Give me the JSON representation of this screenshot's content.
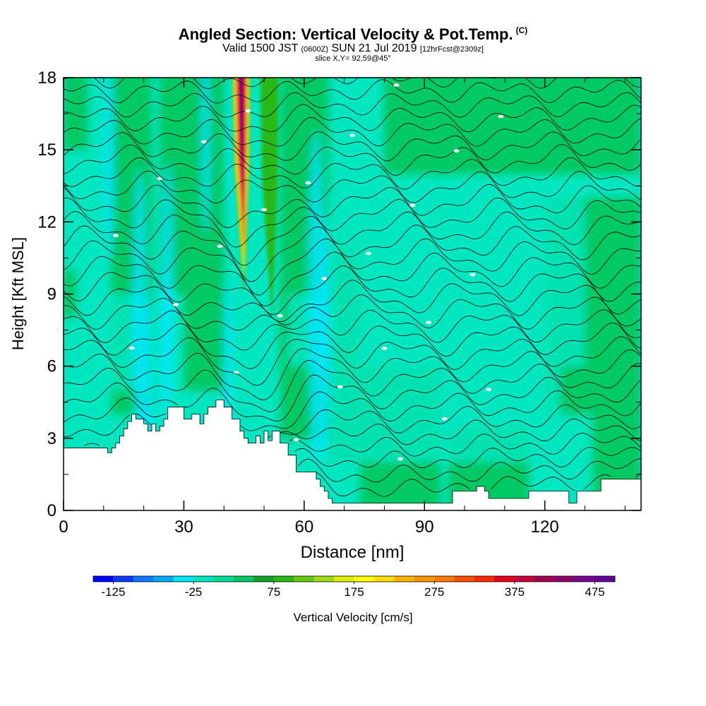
{
  "header": {
    "title": "Angled Section: Vertical Velocity & Pot.Temp.",
    "title_unit": "(C)",
    "valid_prefix": "Valid 1500 JST",
    "utc": "(0600Z)",
    "date": "SUN 21 Jul 2019",
    "forecast": "[12hrFcst@2309z]",
    "slice": "slice X,Y= 92,59@45°"
  },
  "chart_data": {
    "type": "heatmap",
    "title": "Angled Section: Vertical Velocity & Pot.Temp. (C)",
    "xlabel": "Distance [nm]",
    "ylabel": "Height [Kft MSL]",
    "xlim": [
      0,
      144
    ],
    "ylim": [
      0,
      18
    ],
    "x_ticks": [
      0,
      30,
      60,
      90,
      120
    ],
    "y_ticks": [
      0,
      3,
      6,
      9,
      12,
      15,
      18
    ],
    "colorbar": {
      "label": "Vertical Velocity [cm/s]",
      "min": -150,
      "max": 500,
      "step": 25,
      "tick_labels": [
        "-125",
        "-25",
        "75",
        "175",
        "275",
        "375",
        "475"
      ],
      "tick_values": [
        -125,
        -25,
        75,
        175,
        275,
        375,
        475
      ],
      "colors": [
        "#0000ff",
        "#0a3cff",
        "#0f78ff",
        "#00a8ff",
        "#00e6ff",
        "#00e6c0",
        "#00dc96",
        "#00c864",
        "#14a028",
        "#2ab814",
        "#64c814",
        "#a0dc14",
        "#dcf000",
        "#ffff00",
        "#ffdc00",
        "#ffb400",
        "#ff9600",
        "#ff7800",
        "#ff5000",
        "#ff2800",
        "#e6001e",
        "#c8003c",
        "#a00050",
        "#8c006e",
        "#78008c",
        "#640096"
      ]
    },
    "background_field": {
      "dominant_range_cm_s": [
        -25,
        25
      ],
      "secondary_range_cm_s": [
        25,
        75
      ]
    },
    "updraft_cores": [
      {
        "x_nm": 44.5,
        "z_kft_min": 9,
        "z_kft_max": 18,
        "peak_cm_s": 450
      },
      {
        "x_nm": 51.5,
        "z_kft_min": 8,
        "z_kft_max": 18,
        "peak_cm_s": 100
      }
    ],
    "terrain_profile": {
      "x_nm": [
        0,
        10,
        11,
        12,
        13,
        14,
        15,
        16,
        17,
        18,
        20,
        21,
        22,
        23,
        24,
        25,
        26,
        27,
        30,
        32,
        34,
        35,
        36,
        38,
        40,
        42,
        44,
        45,
        46,
        48,
        49,
        50,
        51,
        52,
        53,
        54,
        56,
        58,
        59,
        60,
        63,
        64,
        65,
        66,
        67,
        68,
        69,
        70,
        96,
        97,
        102,
        103,
        105,
        106,
        115,
        116,
        125,
        126,
        128,
        134,
        144
      ],
      "z_kft": [
        2.6,
        2.6,
        2.4,
        2.6,
        2.8,
        3.1,
        3.4,
        3.7,
        4.0,
        3.8,
        3.6,
        3.3,
        3.6,
        3.3,
        3.5,
        3.8,
        4.3,
        4.3,
        3.8,
        4.0,
        3.6,
        4.0,
        4.3,
        4.6,
        4.3,
        3.8,
        3.3,
        3.0,
        2.8,
        3.1,
        2.8,
        3.3,
        2.9,
        3.3,
        3.3,
        2.8,
        2.3,
        1.6,
        1.6,
        1.6,
        1.3,
        1.0,
        0.8,
        0.5,
        0.3,
        0.3,
        0.3,
        0.3,
        0.3,
        0.8,
        0.8,
        1.0,
        0.8,
        0.5,
        0.5,
        0.8,
        0.8,
        0.3,
        0.8,
        1.3,
        1.3
      ]
    },
    "isentropes": {
      "quantity": "Potential temperature (C)",
      "count": 32,
      "bottom_kft": 0.8,
      "top_kft": 18.6
    }
  }
}
